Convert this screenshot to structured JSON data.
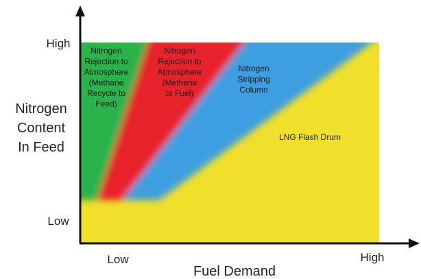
{
  "y_axis": {
    "title": [
      "Nitrogen",
      "Content",
      "In Feed"
    ],
    "high": "High",
    "low": "Low"
  },
  "x_axis": {
    "title": "Fuel Demand",
    "high": "High",
    "low": "Low"
  },
  "regions": [
    {
      "lines": [
        "Nitrogen",
        "Rejection to",
        "Atmosphere",
        "(Methane",
        "Recycle to",
        "Feed)"
      ]
    },
    {
      "lines": [
        "Nitrogen",
        "Rejection to",
        "Atmosphere",
        "(Methane",
        "to Fuel)"
      ]
    },
    {
      "lines": [
        "Nitrogen",
        "Stripping",
        "Column"
      ]
    },
    {
      "lines": [
        "LNG Flash Drum"
      ]
    }
  ]
}
